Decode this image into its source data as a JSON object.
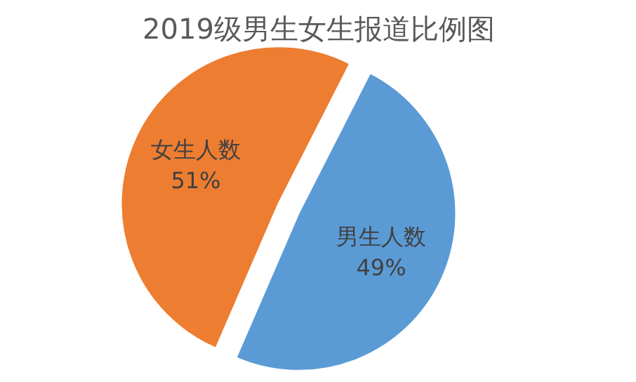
{
  "chart_data": {
    "type": "pie",
    "title": "2019级男生女生报道比例图",
    "categories": [
      "男生人数",
      "女生人数"
    ],
    "values": [
      49,
      51
    ],
    "colors": [
      "#5b9bd5",
      "#ed7d31"
    ],
    "value_labels": [
      "49%",
      "51%"
    ]
  }
}
